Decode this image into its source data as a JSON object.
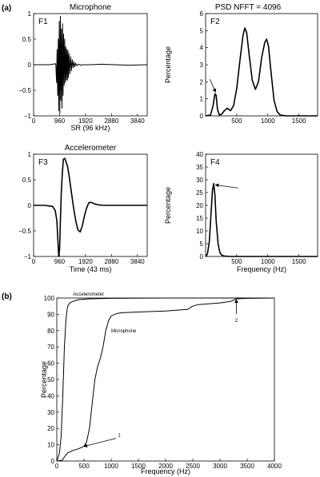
{
  "figure": {
    "part_a_label": "(a)",
    "part_b_label": "(b)"
  },
  "chart_data": [
    {
      "id": "F1",
      "panel_label": "F1",
      "type": "line",
      "title": "Microphone",
      "xlabel": "SR (96 kHz)",
      "ylabel": "",
      "xlim": [
        0,
        4200
      ],
      "ylim": [
        -1,
        1
      ],
      "xticks": [
        0,
        960,
        1920,
        2880,
        3840
      ],
      "yticks": [
        -1,
        -0.5,
        0,
        0.5,
        1
      ],
      "xtick_labels": [
        "0",
        "960",
        "1920",
        "2880",
        "3840"
      ],
      "ytick_labels": [
        "−1",
        "−0.5",
        "0",
        "0.5",
        "1"
      ],
      "series": [
        {
          "x": [
            0,
            600,
            820,
            850,
            870,
            890,
            910,
            930,
            950,
            970,
            990,
            1010,
            1030,
            1050,
            1070,
            1090,
            1110,
            1130,
            1150,
            1170,
            1190,
            1210,
            1230,
            1250,
            1270,
            1290,
            1310,
            1340,
            1370,
            1400,
            1430,
            1460,
            1490,
            1520,
            1560,
            1600,
            1650,
            1700,
            1750,
            1800,
            1900,
            2100,
            2500,
            3000,
            3500,
            4200
          ],
          "y": [
            0,
            0,
            0.02,
            -0.35,
            0.3,
            -0.6,
            0.5,
            -0.9,
            0.85,
            -0.95,
            0.95,
            -0.7,
            0.7,
            -0.85,
            0.8,
            -0.6,
            0.6,
            -0.4,
            0.5,
            -0.35,
            0.35,
            -0.3,
            0.3,
            -0.3,
            0.28,
            -0.25,
            0.22,
            -0.18,
            0.16,
            -0.12,
            0.1,
            -0.06,
            0.06,
            -0.04,
            0.03,
            -0.02,
            0.01,
            0,
            -0.01,
            0,
            0,
            0,
            0.01,
            0,
            -0.01,
            0
          ]
        }
      ]
    },
    {
      "id": "F2",
      "panel_label": "F2",
      "type": "line",
      "title": "PSD  NFFT = 4096",
      "xlabel": "",
      "ylabel": "Percentage",
      "xlim": [
        0,
        1800
      ],
      "ylim": [
        0,
        6
      ],
      "xticks": [
        500,
        1000,
        1500
      ],
      "yticks": [
        0,
        1,
        2,
        3,
        4,
        5,
        6
      ],
      "xtick_labels": [
        "500",
        "1000",
        "1500"
      ],
      "ytick_labels": [
        "0",
        "1",
        "2",
        "3",
        "4",
        "5",
        "6"
      ],
      "series": [
        {
          "x": [
            0,
            80,
            120,
            150,
            170,
            190,
            220,
            260,
            300,
            350,
            400,
            450,
            500,
            550,
            600,
            630,
            660,
            700,
            750,
            800,
            850,
            900,
            950,
            980,
            1010,
            1050,
            1100,
            1150,
            1200,
            1300,
            1500,
            1800
          ],
          "y": [
            0,
            0.05,
            0.6,
            1.3,
            1.2,
            0.4,
            0.05,
            0.1,
            0.3,
            0.45,
            0.3,
            0.6,
            1.6,
            3.2,
            4.7,
            5.15,
            4.9,
            3.6,
            2.1,
            1.55,
            2.0,
            3.4,
            4.3,
            4.5,
            4.1,
            2.6,
            0.9,
            0.25,
            0.05,
            0,
            0,
            0
          ]
        }
      ],
      "annotations": [
        {
          "type": "arrow",
          "x": 160,
          "y": 1.4
        }
      ]
    },
    {
      "id": "F3",
      "panel_label": "F3",
      "type": "line",
      "title": "Accelerometer",
      "xlabel": "Time (43 ms)",
      "ylabel": "",
      "xlim": [
        0,
        4200
      ],
      "ylim": [
        -1,
        1
      ],
      "xticks": [
        0,
        960,
        1920,
        2880,
        3840
      ],
      "yticks": [
        -1,
        -0.5,
        0,
        0.5,
        1
      ],
      "xtick_labels": [
        "0",
        "960",
        "1920",
        "2880",
        "3840"
      ],
      "ytick_labels": [
        "−1",
        "−0.5",
        "0",
        "0.5",
        "1"
      ],
      "series": [
        {
          "x": [
            0,
            400,
            700,
            800,
            860,
            900,
            930,
            960,
            990,
            1020,
            1060,
            1100,
            1150,
            1200,
            1260,
            1320,
            1400,
            1480,
            1560,
            1640,
            1720,
            1800,
            1880,
            1960,
            2040,
            2120,
            2250,
            2400,
            2600,
            3000,
            3500,
            4200
          ],
          "y": [
            0,
            0,
            -0.02,
            -0.1,
            -0.3,
            -0.7,
            -1.0,
            -0.85,
            -0.3,
            0.2,
            0.6,
            0.9,
            0.92,
            0.85,
            0.75,
            0.55,
            0.25,
            -0.05,
            -0.3,
            -0.48,
            -0.52,
            -0.4,
            -0.2,
            -0.05,
            0.05,
            0.06,
            0.03,
            0.01,
            0,
            0,
            0,
            0
          ]
        }
      ]
    },
    {
      "id": "F4",
      "panel_label": "F4",
      "type": "line",
      "title": "",
      "xlabel": "Frequency (Hz)",
      "ylabel": "Percentage",
      "xlim": [
        0,
        1800
      ],
      "ylim": [
        0,
        40
      ],
      "xticks": [
        500,
        1000,
        1500
      ],
      "yticks": [
        0,
        5,
        10,
        15,
        20,
        25,
        30,
        35,
        40
      ],
      "xtick_labels": [
        "500",
        "1000",
        "1500"
      ],
      "ytick_labels": [
        "0",
        "5",
        "10",
        "15",
        "20",
        "25",
        "30",
        "35",
        "40"
      ],
      "series": [
        {
          "x": [
            0,
            30,
            60,
            90,
            110,
            130,
            150,
            170,
            200,
            230,
            260,
            300,
            400,
            600,
            1000,
            1800
          ],
          "y": [
            0,
            1,
            6,
            18,
            26,
            28.5,
            24,
            14,
            5,
            1.5,
            0.5,
            0.2,
            0,
            0,
            0,
            0
          ]
        }
      ],
      "annotations": [
        {
          "type": "arrow",
          "x": 160,
          "y": 28
        }
      ]
    },
    {
      "id": "b",
      "type": "line",
      "title": "",
      "xlabel": "Frequency (Hz)",
      "ylabel": "Percentage",
      "xlim": [
        0,
        4000
      ],
      "ylim": [
        0,
        100
      ],
      "xticks": [
        0,
        500,
        1000,
        1500,
        2000,
        2500,
        3000,
        3500,
        4000
      ],
      "yticks": [
        0,
        10,
        20,
        30,
        40,
        50,
        60,
        70,
        80,
        90,
        100
      ],
      "xtick_labels": [
        "0",
        "500",
        "1000",
        "1500",
        "2000",
        "2500",
        "3000",
        "3500",
        "4000"
      ],
      "ytick_labels": [
        "0",
        "10",
        "20",
        "30",
        "40",
        "50",
        "60",
        "70",
        "80",
        "90",
        "100"
      ],
      "series": [
        {
          "name": "Accelerometer",
          "x": [
            0,
            50,
            80,
            110,
            140,
            170,
            200,
            240,
            300,
            400,
            600,
            1000,
            2000,
            4000
          ],
          "y": [
            0,
            5,
            15,
            40,
            70,
            88,
            95,
            97,
            98,
            99,
            99.5,
            99.8,
            100,
            100
          ]
        },
        {
          "name": "Microphone",
          "x": [
            0,
            100,
            150,
            200,
            300,
            400,
            500,
            550,
            600,
            650,
            700,
            750,
            800,
            850,
            900,
            950,
            1000,
            1100,
            1200,
            1400,
            1600,
            2000,
            2400,
            2500,
            2600,
            3000,
            3200,
            3300,
            3500,
            4000
          ],
          "y": [
            0,
            0.5,
            3,
            5,
            6.5,
            7.5,
            9,
            12,
            20,
            35,
            50,
            58,
            63,
            70,
            80,
            86,
            89,
            90.5,
            91,
            91.3,
            91.5,
            92,
            93,
            95,
            96,
            97,
            98,
            99.5,
            99.8,
            100
          ]
        }
      ],
      "annotations": [
        {
          "label": "1",
          "type": "arrow",
          "x": 500,
          "y": 9
        },
        {
          "label": "2",
          "type": "arrow",
          "x": 3300,
          "y": 99
        }
      ]
    }
  ]
}
